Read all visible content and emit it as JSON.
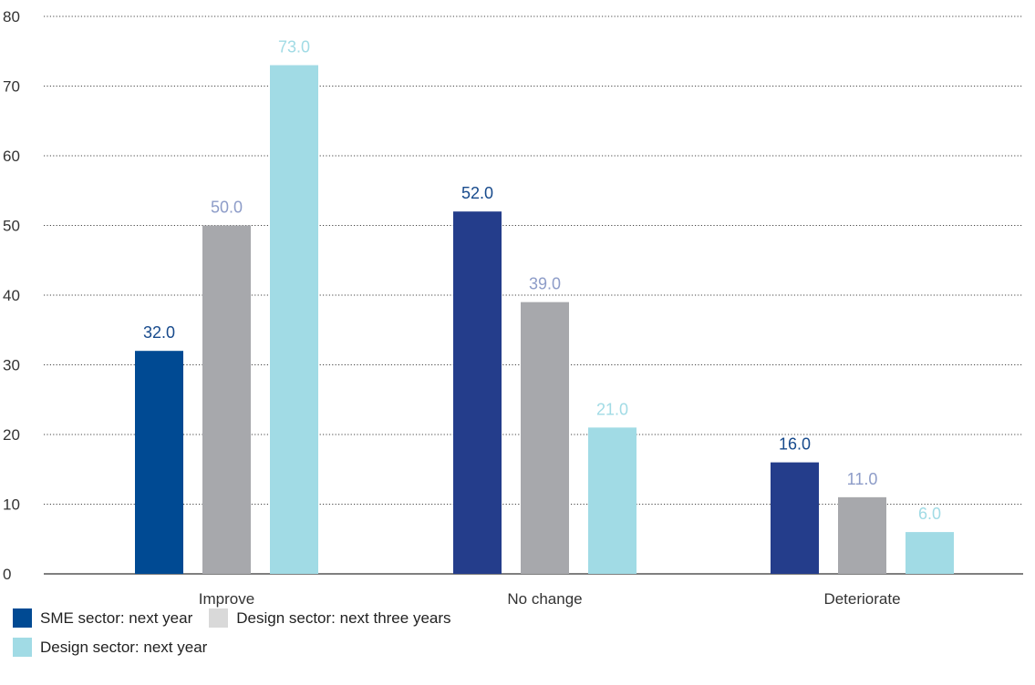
{
  "chart_data": {
    "type": "bar",
    "categories": [
      "Improve",
      "No change",
      "Deteriorate"
    ],
    "series": [
      {
        "name": "SME sector: next year",
        "values": [
          32.0,
          52.0,
          16.0
        ],
        "value_labels": [
          "32.0",
          "52.0",
          "16.0"
        ]
      },
      {
        "name": "Design sector: next three years",
        "values": [
          50.0,
          39.0,
          11.0
        ],
        "value_labels": [
          "50.0",
          "39.0",
          "11.0"
        ]
      },
      {
        "name": "Design sector: next year",
        "values": [
          73.0,
          21.0,
          6.0
        ],
        "value_labels": [
          "73.0",
          "21.0",
          "6.0"
        ]
      }
    ],
    "y_ticks": [
      "0",
      "10",
      "20",
      "30",
      "40",
      "50",
      "60",
      "70",
      "80"
    ],
    "ylim": [
      0,
      80
    ],
    "grid": "dotted horizontal",
    "legend_position": "bottom-left",
    "title": "",
    "xlabel": "",
    "ylabel": ""
  },
  "colors": {
    "sme_improve": "#004a93",
    "sme_other": "#243d8b",
    "design_three_years": "#a7a8ac",
    "design_next_year": "#a1dbe5",
    "label_sme": "#174a8c",
    "label_design_three_years": "#8d9cc8",
    "label_design_next_year": "#a1dbe5",
    "axis_text": "#333333",
    "grid": "#444444"
  },
  "legend": {
    "items": [
      {
        "label": "SME sector: next year",
        "color": "#004a93"
      },
      {
        "label": "Design sector: next three years",
        "color": "#d9d9d9"
      },
      {
        "label": "Design sector: next year",
        "color": "#a1dbe5"
      }
    ]
  }
}
